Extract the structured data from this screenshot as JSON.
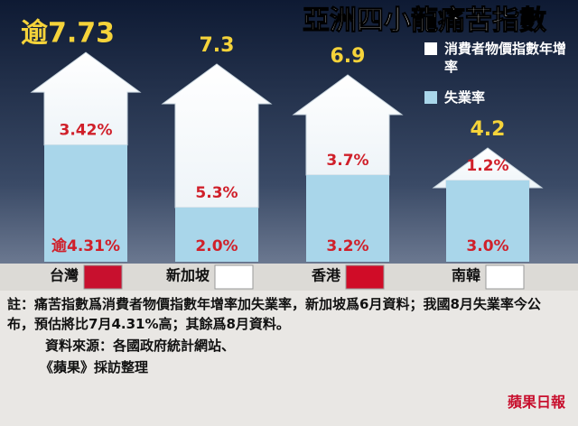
{
  "chart_data": {
    "type": "stacked-arrow",
    "title": "亞洲四小龍痛苦指數",
    "categories": [
      "台灣",
      "新加坡",
      "香港",
      "南韓"
    ],
    "totals": [
      7.73,
      7.3,
      6.9,
      4.2
    ],
    "total_labels": [
      "逾7.73",
      "7.3",
      "6.9",
      "4.2"
    ],
    "series": [
      {
        "name": "消費者物價指數年增率",
        "color": "#ffffff",
        "values": [
          3.42,
          5.3,
          3.7,
          1.2
        ],
        "value_labels": [
          "3.42%",
          "5.3%",
          "3.7%",
          "1.2%"
        ]
      },
      {
        "name": "失業率",
        "color": "#a9d6ea",
        "values": [
          4.31,
          2.0,
          3.2,
          3.0
        ],
        "value_labels": [
          "逾4.31%",
          "2.0%",
          "3.2%",
          "3.0%"
        ]
      }
    ]
  },
  "notes": {
    "note": "註：痛苦指數爲消費者物價指數年增率加失業率，新加坡爲6月資料；我國8月失業率今公布，預估將比7月4.31%高；其餘爲8月資料。",
    "source": "資料來源：各國政府統計網站、",
    "source2": "《蘋果》採訪整理",
    "logo": "蘋果日報"
  }
}
